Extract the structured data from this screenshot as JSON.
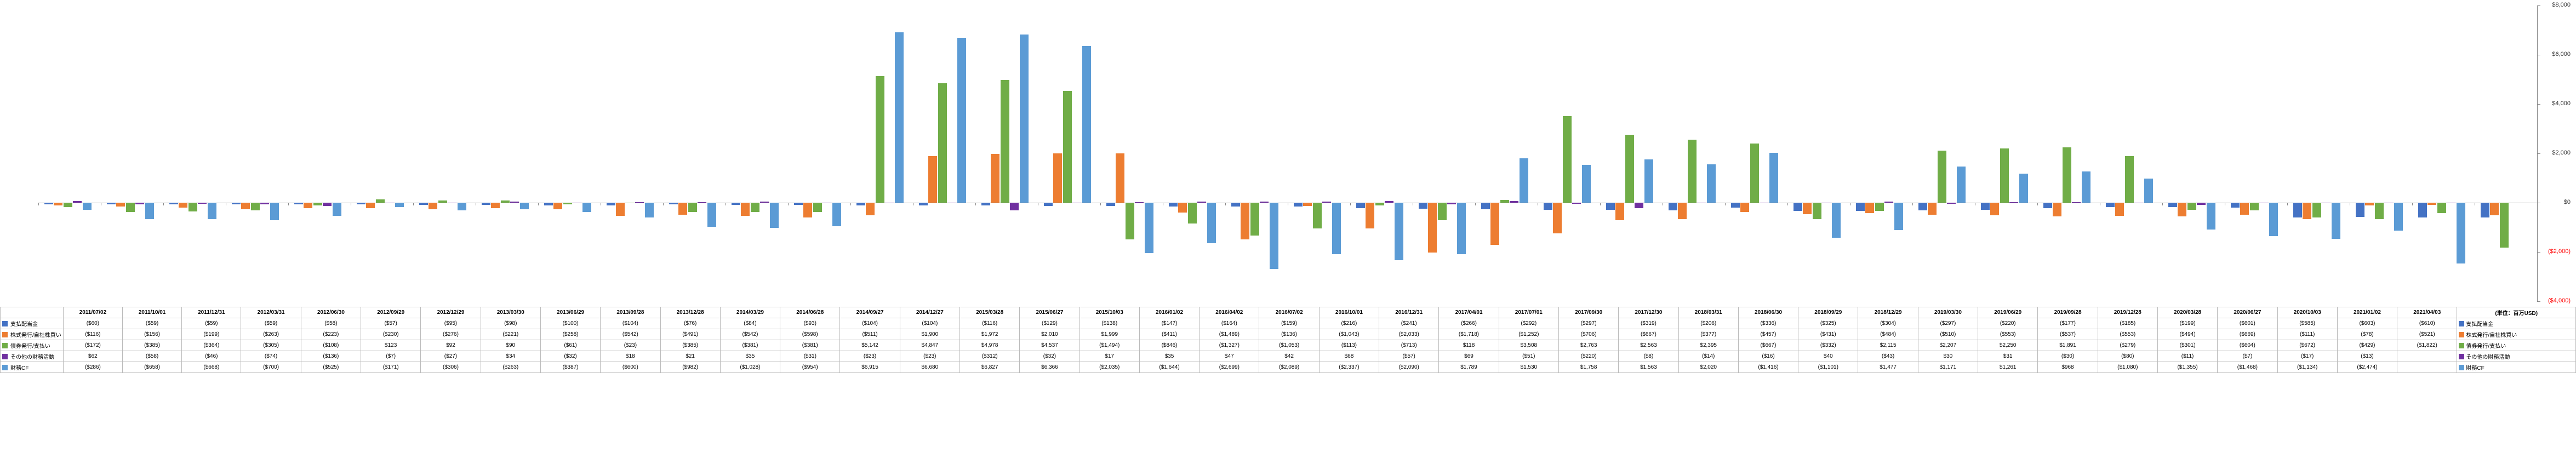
{
  "chart": {
    "type": "bar",
    "ylim": [
      -4000,
      8000
    ],
    "yticks": [
      -4000,
      -2000,
      0,
      2000,
      4000,
      6000,
      8000
    ],
    "ytick_labels": [
      "($4,000)",
      "($2,000)",
      "$0",
      "$2,000",
      "$4,000",
      "$6,000",
      "$8,000"
    ],
    "background_color": "#ffffff",
    "axis_color": "#888888",
    "tick_fontsize": 11,
    "unit_label": "(単位：百万USD)"
  },
  "series": [
    {
      "key": "dividends",
      "label": "支払配当金",
      "color": "#4472c4",
      "right_label": "支払配当金"
    },
    {
      "key": "stock",
      "label": "株式発行/自社株買い",
      "color": "#ed7d31",
      "right_label": "株式発行/自社株買い"
    },
    {
      "key": "debt",
      "label": "債券発行/支払い",
      "color": "#70ad47",
      "right_label": "債券発行/支払い"
    },
    {
      "key": "other",
      "label": "その他の財務活動",
      "color": "#7030a0",
      "right_label": "その他の財務活動"
    },
    {
      "key": "cf",
      "label": "財務CF",
      "color": "#5b9bd5",
      "right_label": "財務CF"
    }
  ],
  "periods": [
    "2011/07/02",
    "2011/10/01",
    "2011/12/31",
    "2012/03/31",
    "2012/06/30",
    "2012/09/29",
    "2012/12/29",
    "2013/03/30",
    "2013/06/29",
    "2013/09/28",
    "2013/12/28",
    "2014/03/29",
    "2014/06/28",
    "2014/09/27",
    "2014/12/27",
    "2015/03/28",
    "2015/06/27",
    "2015/10/03",
    "2016/01/02",
    "2016/04/02",
    "2016/07/02",
    "2016/10/01",
    "2016/12/31",
    "2017/04/01",
    "2017/07/01",
    "2017/09/30",
    "2017/12/30",
    "2018/03/31",
    "2018/06/30",
    "2018/09/29",
    "2018/12/29",
    "2019/03/30",
    "2019/06/29",
    "2019/09/28",
    "2019/12/28",
    "2020/03/28",
    "2020/06/27",
    "2020/10/03",
    "2021/01/02",
    "2021/04/03"
  ],
  "data": {
    "dividends": [
      -60,
      -59,
      -59,
      -59,
      -58,
      -57,
      -95,
      -98,
      -100,
      -104,
      -76,
      -84,
      -93,
      -104,
      -104,
      -116,
      -129,
      -138,
      -147,
      -164,
      -159,
      -216,
      -241,
      -266,
      -292,
      -297,
      -319,
      -206,
      -336,
      -325,
      -304,
      -297,
      -220,
      -177,
      -185,
      -199,
      -601,
      -585,
      -603,
      -610
    ],
    "stock": [
      -116,
      -156,
      -199,
      -263,
      -223,
      -230,
      -276,
      -221,
      -258,
      -542,
      -491,
      -542,
      -598,
      -511,
      1900,
      1972,
      2010,
      1999,
      -411,
      -1489,
      -136,
      -1043,
      -2033,
      -1718,
      -1252,
      -706,
      -667,
      -377,
      -457,
      -431,
      -484,
      -510,
      -553,
      -537,
      -553,
      -494,
      -669,
      -111,
      -78,
      -521
    ],
    "debt": [
      -172,
      -385,
      -364,
      -305,
      -108,
      123,
      92,
      90,
      -61,
      -23,
      -385,
      -381,
      -381,
      5142,
      4847,
      4978,
      4537,
      -1494,
      -846,
      -1327,
      -1053,
      -113,
      -713,
      118,
      3508,
      2763,
      2563,
      2395,
      -667,
      -332,
      2115,
      2207,
      2250,
      1891,
      -279,
      -301,
      -604,
      -672,
      -429,
      -1822
    ],
    "other": [
      62,
      -58,
      -46,
      -74,
      -136,
      -7,
      -27,
      34,
      -32,
      18,
      21,
      35,
      -31,
      -23,
      -23,
      -312,
      -32,
      17,
      35,
      47,
      42,
      68,
      -57,
      69,
      -51,
      -220,
      -8,
      -14,
      -16,
      40,
      -43,
      30,
      31,
      -30,
      -80,
      -11,
      -7,
      -17,
      -13,
      null
    ],
    "cf": [
      -286,
      -658,
      -668,
      -700,
      -525,
      -171,
      -306,
      -263,
      -387,
      -600,
      -982,
      -1028,
      -954,
      6915,
      6680,
      6827,
      6366,
      -2035,
      -1644,
      -2699,
      -2089,
      -2337,
      -2090,
      1789,
      1530,
      1758,
      1563,
      2020,
      -1416,
      -1101,
      1477,
      1171,
      1261,
      968,
      -1080,
      -1355,
      -1468,
      -1134,
      -2474,
      null
    ]
  },
  "display": {
    "dividends": [
      "($60)",
      "($59)",
      "($59)",
      "($59)",
      "($58)",
      "($57)",
      "($95)",
      "($98)",
      "($100)",
      "($104)",
      "($76)",
      "($84)",
      "($93)",
      "($104)",
      "($104)",
      "($116)",
      "($129)",
      "($138)",
      "($147)",
      "($164)",
      "($159)",
      "($216)",
      "($241)",
      "($266)",
      "($292)",
      "($297)",
      "($319)",
      "($206)",
      "($336)",
      "($325)",
      "($304)",
      "($297)",
      "($220)",
      "($177)",
      "($185)",
      "($199)",
      "($601)",
      "($585)",
      "($603)",
      "($610)"
    ],
    "stock": [
      "($116)",
      "($156)",
      "($199)",
      "($263)",
      "($223)",
      "($230)",
      "($276)",
      "($221)",
      "($258)",
      "($542)",
      "($491)",
      "($542)",
      "($598)",
      "($511)",
      "$1,900",
      "$1,972",
      "$2,010",
      "$1,999",
      "($411)",
      "($1,489)",
      "($136)",
      "($1,043)",
      "($2,033)",
      "($1,718)",
      "($1,252)",
      "($706)",
      "($667)",
      "($377)",
      "($457)",
      "($431)",
      "($484)",
      "($510)",
      "($553)",
      "($537)",
      "($553)",
      "($494)",
      "($669)",
      "($111)",
      "($78)",
      "($521)"
    ],
    "debt": [
      "($172)",
      "($385)",
      "($364)",
      "($305)",
      "($108)",
      "$123",
      "$92",
      "$90",
      "($61)",
      "($23)",
      "($385)",
      "($381)",
      "($381)",
      "$5,142",
      "$4,847",
      "$4,978",
      "$4,537",
      "($1,494)",
      "($846)",
      "($1,327)",
      "($1,053)",
      "($113)",
      "($713)",
      "$118",
      "$3,508",
      "$2,763",
      "$2,563",
      "$2,395",
      "($667)",
      "($332)",
      "$2,115",
      "$2,207",
      "$2,250",
      "$1,891",
      "($279)",
      "($301)",
      "($604)",
      "($672)",
      "($429)",
      "($1,822)"
    ],
    "other": [
      "$62",
      "($58)",
      "($46)",
      "($74)",
      "($136)",
      "($7)",
      "($27)",
      "$34",
      "($32)",
      "$18",
      "$21",
      "$35",
      "($31)",
      "($23)",
      "($23)",
      "($312)",
      "($32)",
      "$17",
      "$35",
      "$47",
      "$42",
      "$68",
      "($57)",
      "$69",
      "($51)",
      "($220)",
      "($8)",
      "($14)",
      "($16)",
      "$40",
      "($43)",
      "$30",
      "$31",
      "($30)",
      "($80)",
      "($11)",
      "($7)",
      "($17)",
      "($13)",
      ""
    ],
    "cf": [
      "($286)",
      "($658)",
      "($668)",
      "($700)",
      "($525)",
      "($171)",
      "($306)",
      "($263)",
      "($387)",
      "($600)",
      "($982)",
      "($1,028)",
      "($954)",
      "$6,915",
      "$6,680",
      "$6,827",
      "$6,366",
      "($2,035)",
      "($1,644)",
      "($2,699)",
      "($2,089)",
      "($2,337)",
      "($2,090)",
      "$1,789",
      "$1,530",
      "$1,758",
      "$1,563",
      "$2,020",
      "($1,416)",
      "($1,101)",
      "$1,477",
      "$1,171",
      "$1,261",
      "$968",
      "($1,080)",
      "($1,355)",
      "($1,468)",
      "($1,134)",
      "($2,474)",
      ""
    ],
    "rightcol": [
      "($618)",
      "",
      "",
      "",
      "",
      ""
    ]
  }
}
